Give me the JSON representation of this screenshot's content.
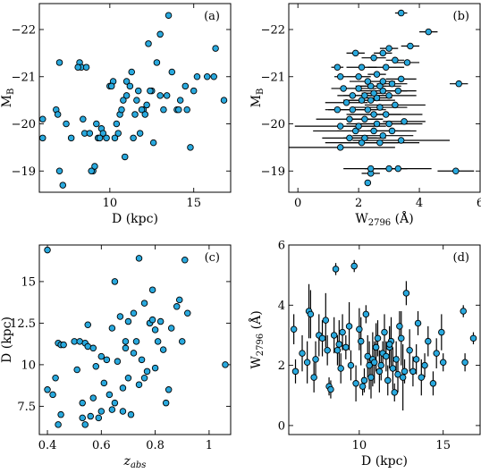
{
  "chart_data": [
    {
      "id": "a",
      "type": "scatter",
      "panel_label": "(a)",
      "xlabel": "D (kpc)",
      "ylabel": "M",
      "ylabel_sub": "B",
      "xlim": [
        5.8,
        17.2
      ],
      "ylim": [
        -18.55,
        -22.55
      ],
      "xticks": [
        10,
        15
      ],
      "yticks": [
        -19,
        -20,
        -21,
        -22
      ],
      "x": [
        6.0,
        6.0,
        6.8,
        7.0,
        7.0,
        7.4,
        7.7,
        8.2,
        8.3,
        8.5,
        8.6,
        8.8,
        9.0,
        9.1,
        9.2,
        9.3,
        9.5,
        9.6,
        9.8,
        10.0,
        10.2,
        10.3,
        10.4,
        10.6,
        10.8,
        10.9,
        11.0,
        11.0,
        11.2,
        11.4,
        11.5,
        11.6,
        11.8,
        12.0,
        12.2,
        12.3,
        12.5,
        12.8,
        13.0,
        13.0,
        13.2,
        13.5,
        14.0,
        14.2,
        14.5,
        14.8,
        15.0,
        15.2,
        15.8,
        16.2,
        16.3,
        16.8,
        6.9,
        7.2,
        8.1,
        8.4,
        8.9,
        9.4,
        10.1,
        10.7,
        11.3,
        11.9,
        12.6,
        13.4,
        14.1,
        12.1,
        11.7,
        10.5,
        12.4,
        13.7,
        14.6
      ],
      "y": [
        -19.7,
        -20.1,
        -20.3,
        -19.0,
        -21.3,
        -20.0,
        -19.7,
        -21.3,
        -21.2,
        -19.8,
        -21.2,
        -19.8,
        -19.0,
        -19.1,
        -20.0,
        -19.7,
        -19.9,
        -19.8,
        -19.7,
        -20.8,
        -20.9,
        -19.7,
        -20.0,
        -20.2,
        -20.5,
        -19.3,
        -20.6,
        -20.9,
        -20.8,
        -19.7,
        -20.2,
        -20.5,
        -19.8,
        -20.3,
        -20.4,
        -21.7,
        -20.7,
        -21.3,
        -21.9,
        -20.6,
        -20.3,
        -22.3,
        -20.3,
        -20.5,
        -20.8,
        -19.5,
        -20.7,
        -21.0,
        -21.0,
        -21.0,
        -21.6,
        -20.5,
        -20.2,
        -18.7,
        -21.2,
        -20.1,
        -19.0,
        -19.7,
        -20.8,
        -20.3,
        -21.1,
        -20.3,
        -19.6,
        -20.6,
        -20.3,
        -20.2,
        -20.7,
        -19.8,
        -20.7,
        -21.1,
        -20.3
      ]
    },
    {
      "id": "b",
      "type": "scatter",
      "panel_label": "(b)",
      "xlabel": "W",
      "xlabel_sub": "2796",
      "xlabel_unit": "(Å)",
      "ylabel": "M",
      "ylabel_sub": "B",
      "xlim": [
        -0.3,
        6.0
      ],
      "ylim": [
        -18.55,
        -22.55
      ],
      "xticks": [
        0,
        2,
        4,
        6
      ],
      "yticks": [
        -19,
        -20,
        -21,
        -22
      ],
      "x": [
        2.3,
        2.4,
        2.4,
        3.0,
        3.3,
        5.2,
        1.4,
        2.1,
        2.7,
        3.4,
        1.7,
        2.2,
        2.8,
        1.9,
        2.5,
        3.1,
        1.4,
        2.0,
        2.6,
        3.0,
        3.5,
        1.7,
        2.2,
        2.5,
        2.9,
        1.3,
        1.8,
        2.3,
        2.7,
        3.2,
        1.6,
        2.1,
        2.4,
        2.6,
        3.0,
        1.8,
        2.2,
        2.5,
        2.8,
        3.3,
        1.5,
        2.0,
        2.4,
        2.7,
        3.1,
        2.3,
        2.8,
        3.4,
        1.4,
        2.0,
        2.6,
        5.3,
        1.3,
        2.1,
        2.9,
        3.6,
        2.5,
        3.2,
        1.9,
        2.8,
        3.0,
        3.7,
        4.3,
        3.4
      ],
      "y": [
        -18.75,
        -18.95,
        -19.05,
        -19.05,
        -19.05,
        -19.0,
        -19.5,
        -19.6,
        -19.6,
        -19.65,
        -19.7,
        -19.7,
        -19.75,
        -19.85,
        -19.85,
        -19.85,
        -19.95,
        -19.95,
        -20.0,
        -20.0,
        -20.05,
        -20.1,
        -20.1,
        -20.2,
        -20.2,
        -20.3,
        -20.3,
        -20.3,
        -20.35,
        -20.4,
        -20.45,
        -20.5,
        -20.5,
        -20.55,
        -20.6,
        -20.6,
        -20.6,
        -20.65,
        -20.7,
        -20.7,
        -20.75,
        -20.75,
        -20.8,
        -20.8,
        -20.85,
        -20.9,
        -20.9,
        -20.95,
        -21.0,
        -21.0,
        -21.05,
        -20.85,
        -21.2,
        -21.2,
        -21.2,
        -21.3,
        -21.4,
        -21.35,
        -21.5,
        -21.5,
        -21.6,
        -21.65,
        -21.95,
        -22.35
      ],
      "xerr": [
        0.1,
        0.3,
        0.9,
        0.6,
        1.1,
        0.6,
        1.8,
        1.2,
        1.3,
        1.6,
        0.9,
        0.7,
        1.0,
        1.4,
        1.2,
        0.8,
        1.5,
        0.5,
        1.0,
        1.1,
        0.7,
        1.1,
        0.6,
        0.9,
        1.2,
        0.4,
        0.8,
        0.6,
        0.9,
        1.0,
        0.7,
        0.6,
        0.8,
        0.5,
        0.9,
        0.5,
        0.7,
        0.4,
        0.8,
        0.6,
        0.4,
        0.6,
        0.5,
        0.7,
        0.5,
        0.6,
        0.4,
        0.5,
        0.2,
        0.4,
        0.3,
        0.3,
        0.2,
        0.5,
        0.6,
        0.4,
        0.4,
        0.3,
        0.3,
        0.3,
        0.3,
        0.3,
        0.3,
        0.2
      ]
    },
    {
      "id": "c",
      "type": "scatter",
      "panel_label": "(c)",
      "xlabel": "z",
      "xlabel_sub": "abs",
      "ylabel": "D (kpc)",
      "xlim": [
        0.37,
        1.08
      ],
      "ylim": [
        5.8,
        17.2
      ],
      "xticks": [
        0.4,
        0.6,
        0.8,
        1.0
      ],
      "yticks": [
        7.5,
        10.0,
        12.5,
        15.0
      ],
      "x": [
        0.4,
        0.4,
        0.43,
        0.44,
        0.44,
        0.45,
        0.45,
        0.5,
        0.51,
        0.52,
        0.53,
        0.54,
        0.54,
        0.55,
        0.55,
        0.56,
        0.57,
        0.58,
        0.59,
        0.6,
        0.6,
        0.62,
        0.63,
        0.64,
        0.65,
        0.65,
        0.66,
        0.67,
        0.68,
        0.69,
        0.7,
        0.7,
        0.71,
        0.72,
        0.73,
        0.74,
        0.75,
        0.76,
        0.76,
        0.77,
        0.78,
        0.79,
        0.8,
        0.8,
        0.81,
        0.82,
        0.83,
        0.84,
        0.85,
        0.88,
        0.89,
        0.9,
        0.91,
        0.92,
        1.06,
        0.42,
        0.46,
        0.53,
        0.57,
        0.61,
        0.68,
        0.72,
        0.78,
        0.86,
        0.74,
        0.69,
        0.79,
        0.64
      ],
      "y": [
        16.9,
        8.5,
        9.2,
        11.3,
        6.4,
        7.0,
        11.2,
        11.4,
        9.7,
        11.4,
        7.7,
        11.3,
        6.4,
        11.1,
        12.4,
        6.9,
        8.0,
        9.9,
        6.8,
        10.5,
        7.2,
        10.3,
        8.2,
        12.2,
        15.0,
        7.7,
        10.2,
        12.9,
        8.6,
        11.0,
        12.6,
        9.2,
        7.0,
        13.1,
        11.4,
        16.4,
        10.3,
        9.2,
        13.7,
        9.6,
        12.5,
        14.5,
        12.1,
        9.8,
        11.4,
        12.6,
        10.9,
        7.7,
        8.5,
        13.5,
        13.9,
        11.4,
        16.3,
        13.1,
        10.0,
        8.2,
        11.2,
        6.8,
        11.0,
        8.9,
        7.2,
        10.7,
        12.5,
        12.2,
        8.8,
        11.4,
        12.7,
        7.3
      ]
    },
    {
      "id": "d",
      "type": "scatter",
      "panel_label": "(d)",
      "xlabel": "D (kpc)",
      "ylabel": "W",
      "ylabel_sub": "2796",
      "ylabel_unit": "(Å)",
      "xlim": [
        5.8,
        17.2
      ],
      "ylim": [
        -0.3,
        6.0
      ],
      "xticks": [
        10,
        15
      ],
      "yticks": [
        0,
        2,
        4,
        6
      ],
      "x": [
        6.1,
        6.2,
        6.6,
        6.9,
        7.0,
        7.1,
        7.3,
        7.6,
        7.8,
        8.0,
        8.2,
        8.3,
        8.5,
        8.6,
        8.7,
        8.8,
        8.9,
        9.0,
        9.2,
        9.5,
        9.7,
        9.8,
        10.0,
        10.1,
        10.2,
        10.3,
        10.4,
        10.5,
        10.6,
        10.7,
        10.8,
        11.0,
        11.1,
        11.2,
        11.3,
        11.4,
        11.5,
        11.6,
        11.7,
        11.8,
        11.9,
        12.0,
        12.1,
        12.2,
        12.3,
        12.4,
        12.5,
        12.7,
        12.8,
        13.0,
        13.2,
        13.4,
        13.5,
        13.7,
        13.9,
        14.1,
        14.4,
        14.6,
        14.9,
        15.0,
        16.2,
        16.3,
        16.8,
        7.4,
        8.1,
        9.4,
        10.9,
        11.8,
        12.6
      ],
      "y": [
        3.2,
        1.8,
        2.4,
        2.1,
        3.8,
        3.7,
        1.6,
        3.0,
        2.9,
        3.5,
        1.3,
        1.2,
        3.0,
        5.2,
        2.5,
        2.7,
        1.9,
        3.1,
        2.6,
        2.0,
        5.3,
        1.4,
        3.2,
        2.8,
        1.3,
        1.5,
        3.7,
        2.3,
        2.0,
        1.6,
        2.2,
        2.6,
        2.9,
        1.8,
        2.0,
        2.4,
        3.1,
        2.3,
        1.5,
        2.6,
        2.8,
        1.9,
        1.1,
        2.2,
        1.7,
        3.3,
        2.9,
        1.8,
        4.4,
        2.5,
        1.8,
        2.2,
        3.4,
        1.6,
        2.0,
        2.8,
        1.4,
        2.4,
        3.1,
        2.1,
        3.8,
        2.1,
        2.9,
        2.2,
        2.5,
        3.3,
        2.1,
        2.7,
        1.6
      ],
      "yerr": [
        0.5,
        0.4,
        0.6,
        0.7,
        0.9,
        0.8,
        0.5,
        0.7,
        0.6,
        0.9,
        0.3,
        0.3,
        0.6,
        0.2,
        0.5,
        0.8,
        0.5,
        0.6,
        0.4,
        0.5,
        0.2,
        0.6,
        0.7,
        0.8,
        0.3,
        0.4,
        0.3,
        0.7,
        0.8,
        0.7,
        0.9,
        0.8,
        0.6,
        0.7,
        0.5,
        0.4,
        0.6,
        0.5,
        0.5,
        0.7,
        0.8,
        0.7,
        0.3,
        0.6,
        0.6,
        0.5,
        0.9,
        0.4,
        0.4,
        0.7,
        0.5,
        0.5,
        0.4,
        0.6,
        0.4,
        0.5,
        0.4,
        0.5,
        0.6,
        0.3,
        0.2,
        0.3,
        0.2,
        0.6,
        0.5,
        0.8,
        0.7,
        0.6,
        1.1
      ]
    }
  ],
  "colors": {
    "marker_fill": "#29a9de",
    "marker_edge": "#000000",
    "errorbar": "#000000"
  }
}
